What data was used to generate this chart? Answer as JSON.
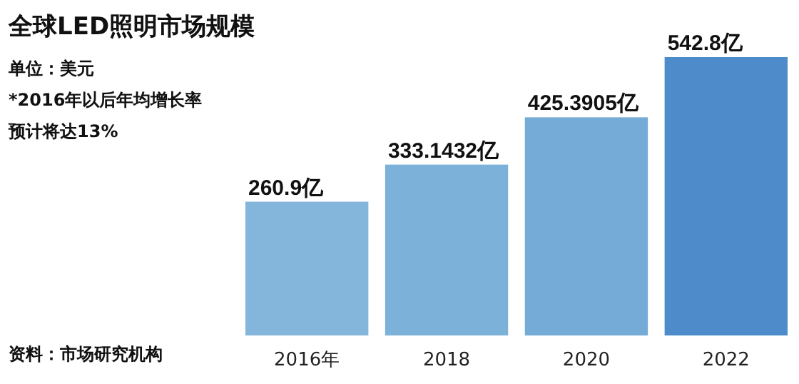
{
  "chart_data": {
    "type": "bar",
    "title": "全球LED照明市场规模",
    "categories": [
      "2016年",
      "2018",
      "2020",
      "2022"
    ],
    "values": [
      260.9,
      333.1432,
      425.3905,
      542.8
    ],
    "colors": [
      "#84b6dc",
      "#7cb1da",
      "#74abd7",
      "#4d8bcb"
    ],
    "value_labels": [
      "260.9亿",
      "333.1432亿",
      "425.3905亿",
      "542.8亿"
    ],
    "annotations": [
      "单位：美元",
      "*2016年以后年均增长率",
      "预计将达13%",
      "资料：市场研究机构"
    ]
  }
}
